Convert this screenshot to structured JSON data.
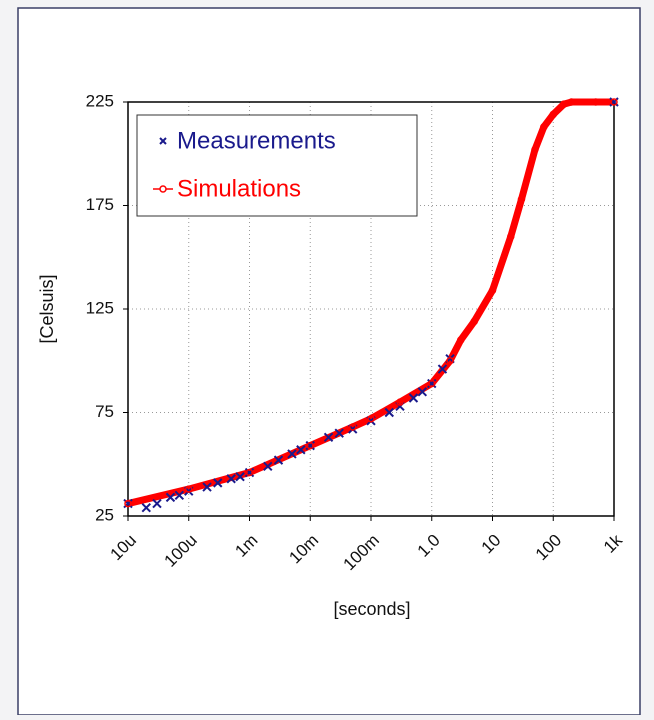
{
  "chart_data": {
    "type": "scatter",
    "xlabel": "[seconds]",
    "ylabel": "[Celsuis]",
    "xscale": "log",
    "grid": true,
    "legend": "upper left",
    "xlim": [
      1e-05,
      1000
    ],
    "xticks": [
      {
        "value": 1e-05,
        "label": "10u"
      },
      {
        "value": 0.0001,
        "label": "100u"
      },
      {
        "value": 0.001,
        "label": "1m"
      },
      {
        "value": 0.01,
        "label": "10m"
      },
      {
        "value": 0.1,
        "label": "100m"
      },
      {
        "value": 1,
        "label": "1.0"
      },
      10,
      100,
      {
        "value": 1000,
        "label": "1k"
      }
    ],
    "ylim": [
      25,
      225
    ],
    "yticks": [
      25,
      75,
      125,
      175,
      225
    ],
    "series": [
      {
        "name": "Measurements",
        "color": "#1a1a8c",
        "marker": "x",
        "x": [
          1e-05,
          2e-05,
          3e-05,
          5e-05,
          7e-05,
          0.0001,
          0.0002,
          0.0003,
          0.0005,
          0.0007,
          0.001,
          0.002,
          0.003,
          0.005,
          0.007,
          0.01,
          0.02,
          0.03,
          0.05,
          0.1,
          0.2,
          0.3,
          0.5,
          0.7,
          1,
          1.5,
          2,
          1000
        ],
        "values": [
          31,
          29,
          31,
          34,
          35,
          37,
          39,
          41,
          43,
          44,
          46,
          49,
          52,
          55,
          57,
          59,
          63,
          65,
          67,
          71,
          75,
          78,
          82,
          85,
          89,
          96,
          101,
          225
        ]
      },
      {
        "name": "Simulations",
        "color": "#ff0000",
        "marker": "o",
        "x": [
          1e-05,
          0.0001,
          0.001,
          0.01,
          0.05,
          0.1,
          0.3,
          1,
          2,
          3,
          5,
          10,
          20,
          30,
          50,
          70,
          100,
          150,
          200,
          500,
          1000
        ],
        "values": [
          31,
          38,
          46,
          59,
          68,
          72,
          80,
          89,
          100,
          110,
          119,
          134,
          160,
          178,
          202,
          213,
          219,
          224,
          225,
          225,
          225
        ]
      }
    ]
  }
}
